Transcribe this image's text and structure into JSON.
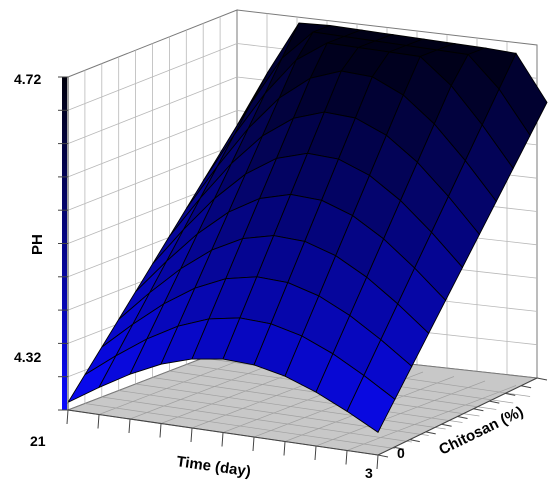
{
  "chart_data": {
    "type": "surface",
    "x": {
      "label": "Time (day)",
      "ticks": [
        "21",
        "3"
      ],
      "range": [
        21,
        3
      ]
    },
    "y": {
      "label": "Chitosan (%)",
      "ticks": [
        "0"
      ]
    },
    "z": {
      "label": "PH",
      "ticks": [
        "4.72",
        "4.32"
      ],
      "range": [
        4.28,
        4.72
      ]
    },
    "colorbar": {
      "low_color": "#0a0aff",
      "high_color": "#000010"
    },
    "surface": {
      "corner_near_left": 4.29,
      "corner_far_left": 4.57,
      "corner_near_right": 4.31,
      "corner_far_right": 4.66,
      "peak": 4.72
    },
    "grid": true,
    "floor_color": "#c8c8c8",
    "surface_colormap": [
      "#000014",
      "#0000ff"
    ]
  }
}
